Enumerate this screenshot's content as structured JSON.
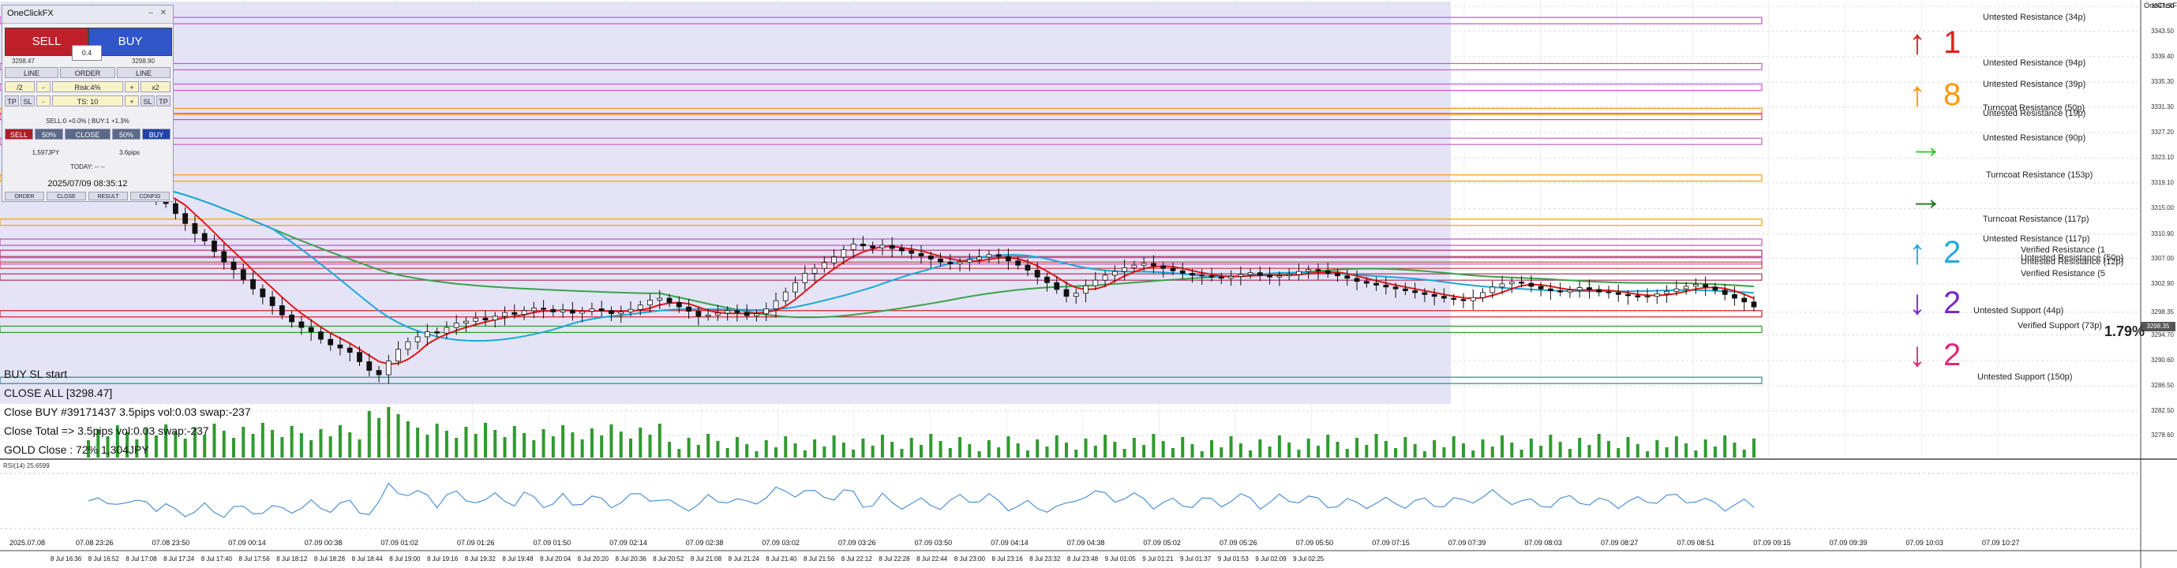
{
  "chart_data": {
    "type": "candlestick",
    "symbol_label": "OneClickFX",
    "price_axis": {
      "min": 3275,
      "max": 3348,
      "labels": [
        "3347.50",
        "3343.50",
        "3339.40",
        "3335.30",
        "3331.30",
        "3327.20",
        "3323.10",
        "3319.10",
        "3315.00",
        "3310.90",
        "3307.00",
        "3302.90",
        "3298.35",
        "3294.70",
        "3290.60",
        "3286.50",
        "3282.50",
        "3278.60"
      ]
    },
    "time_axis": {
      "labels": [
        "07.08 23:26",
        "07.08 23:50",
        "07.09 00:14",
        "07.09 00:38",
        "07.09 01:02",
        "07.09 01:26",
        "07.09 01:50",
        "07.09 02:14",
        "07.09 02:38",
        "07.09 03:02",
        "07.09 03:26",
        "07.09 03:50",
        "07.09 04:14",
        "07.09 04:38",
        "07.09 05:02",
        "07.09 05:26",
        "07.09 05:50",
        "07.09 07:15",
        "07.09 07:39",
        "07.09 08:03",
        "07.09 08:27",
        "07.09 08:51",
        "07.09 09:15",
        "07.09 09:39",
        "07.09 10:03",
        "07.09 10:27"
      ],
      "left_label": "2025.07.08",
      "bottom_labels": [
        "8 Jul 16:36",
        "8 Jul 16:52",
        "8 Jul 17:08",
        "8 Jul 17:24",
        "8 Jul 17:40",
        "8 Jul 17:56",
        "8 Jul 18:12",
        "8 Jul 18:28",
        "8 Jul 18:44",
        "8 Jul 19:00",
        "8 Jul 19:16",
        "8 Jul 19:32",
        "8 Jul 19:48",
        "8 Jul 20:04",
        "8 Jul 20:20",
        "8 Jul 20:36",
        "8 Jul 20:52",
        "8 Jul 21:08",
        "8 Jul 21:24",
        "8 Jul 21:40",
        "8 Jul 21:56",
        "8 Jul 22:12",
        "8 Jul 22:28",
        "8 Jul 22:44",
        "8 Jul 23:00",
        "8 Jul 23:16",
        "8 Jul 23:32",
        "8 Jul 23:48",
        "9 Jul 01:05",
        "9 Jul 01:21",
        "9 Jul 01:37",
        "9 Jul 01:53",
        "9 Jul 02:09",
        "9 Jul 02:25"
      ]
    },
    "close_series": [
      3319.2,
      3318.8,
      3318.6,
      3318.9,
      3318.2,
      3317.6,
      3318.1,
      3317.0,
      3315.8,
      3314.2,
      3312.6,
      3311.0,
      3309.8,
      3308.1,
      3306.4,
      3305.2,
      3303.6,
      3302.1,
      3300.8,
      3299.4,
      3297.9,
      3296.8,
      3295.9,
      3295.2,
      3294.0,
      3293.1,
      3292.6,
      3291.9,
      3290.4,
      3289.0,
      3288.3,
      3290.5,
      3292.4,
      3293.6,
      3294.4,
      3295.2,
      3295.0,
      3295.9,
      3296.6,
      3296.9,
      3297.4,
      3297.1,
      3297.7,
      3298.3,
      3298.0,
      3298.6,
      3299.0,
      3298.8,
      3298.4,
      3298.7,
      3298.2,
      3298.5,
      3298.9,
      3298.6,
      3298.1,
      3298.4,
      3298.8,
      3299.5,
      3300.3,
      3300.6,
      3299.9,
      3299.2,
      3298.5,
      3297.7,
      3297.9,
      3298.2,
      3298.6,
      3298.3,
      3297.8,
      3298.1,
      3298.9,
      3300.2,
      3301.6,
      3303.1,
      3304.6,
      3305.4,
      3306.3,
      3307.2,
      3308.4,
      3309.3,
      3309.0,
      3308.7,
      3309.1,
      3308.6,
      3308.2,
      3307.8,
      3307.4,
      3306.9,
      3306.4,
      3306.1,
      3306.4,
      3306.8,
      3307.2,
      3307.6,
      3307.3,
      3306.6,
      3305.9,
      3305.1,
      3304.0,
      3303.1,
      3302.0,
      3300.9,
      3301.4,
      3302.6,
      3303.5,
      3304.3,
      3304.9,
      3305.5,
      3305.9,
      3306.2,
      3305.8,
      3305.4,
      3305.0,
      3304.6,
      3304.3,
      3304.2,
      3304.0,
      3303.8,
      3304.1,
      3304.4,
      3304.7,
      3304.3,
      3304.0,
      3304.2,
      3304.4,
      3304.9,
      3305.2,
      3305.0,
      3304.6,
      3304.2,
      3303.8,
      3303.3,
      3303.0,
      3302.7,
      3302.4,
      3302.1,
      3301.8,
      3301.5,
      3301.2,
      3300.9,
      3300.6,
      3300.4,
      3300.2,
      3300.7,
      3301.5,
      3302.4,
      3302.9,
      3303.2,
      3303.0,
      3302.5,
      3302.1,
      3301.8,
      3301.6,
      3301.9,
      3302.3,
      3302.0,
      3301.6,
      3301.5,
      3301.2,
      3301.0,
      3300.8,
      3300.9,
      3301.3,
      3301.7,
      3302.1,
      3302.5,
      3302.8,
      3302.4,
      3301.9,
      3301.2,
      3300.6,
      3300.0,
      3299.2
    ],
    "indicators": {
      "ma_fast": "red",
      "ma_mid": "deepskyblue",
      "ma_slow": "green",
      "rsi_label": "RSI(14) 25.6599"
    },
    "levels": [
      {
        "label": "Untested Resistance (34p)",
        "price": 3345.2,
        "color": "#e040e0"
      },
      {
        "label": "Untested Resistance (94p)",
        "price": 3337.8,
        "color": "#c060c0"
      },
      {
        "label": "Untested Resistance (39p)",
        "price": 3334.5,
        "color": "#d050d0"
      },
      {
        "label": "Turncoat Resistance (50p)",
        "price": 3330.6,
        "color": "#ff9900"
      },
      {
        "label": "Untested Resistance (19p)",
        "price": 3329.8,
        "color": "#e040a0"
      },
      {
        "label": "Untested Resistance (90p)",
        "price": 3325.8,
        "color": "#c060c0"
      },
      {
        "label": "Turncoat Resistance (153p)",
        "price": 3319.9,
        "color": "#ff9900"
      },
      {
        "label": "Turncoat Resistance (117p)",
        "price": 3312.8,
        "color": "#ff9900"
      },
      {
        "label": "Untested Resistance (117p)",
        "price": 3309.6,
        "color": "#c050c0"
      },
      {
        "label": "Verified Resistance (1",
        "price": 3307.8,
        "color": "#b03060"
      },
      {
        "label": "Untested Resistance (50p)",
        "price": 3306.6,
        "color": "#c050c0"
      },
      {
        "label": "Untested Resistance (12p)",
        "price": 3305.9,
        "color": "#d04040"
      },
      {
        "label": "Verified Resistance (5",
        "price": 3304.0,
        "color": "#b03060"
      },
      {
        "label": "Untested Support (44p)",
        "price": 3298.1,
        "color": "#d02020"
      },
      {
        "label": "Verified Support (73p)",
        "price": 3295.6,
        "color": "#2a9a2a"
      },
      {
        "label": "Untested Support (150p)",
        "price": 3287.4,
        "color": "#2a8a8a"
      }
    ],
    "strength_panel": [
      {
        "arrow": "↑",
        "count": "1",
        "color": "#e02020"
      },
      {
        "arrow": "↑",
        "count": "8",
        "color": "#ff9900"
      },
      {
        "arrow": "→",
        "count": "",
        "color": "#33cc33"
      },
      {
        "arrow": "→",
        "count": "",
        "color": "#1a7a1a"
      },
      {
        "arrow": "↑",
        "count": "2",
        "color": "#22aadd"
      },
      {
        "arrow": "↓",
        "count": "2",
        "color": "#7a2ac0"
      },
      {
        "arrow": "↓",
        "count": "2",
        "color": "#e0287a"
      }
    ],
    "current_price_label": "3298.35",
    "percent_label": "1.79%"
  },
  "panel": {
    "title": "OneClickFX",
    "sell_label": "SELL",
    "buy_label": "BUY",
    "lot": "0.4",
    "sell_price": "3298.47",
    "buy_price": "3298.90",
    "row1": [
      "LINE",
      "ORDER",
      "LINE"
    ],
    "row2": [
      "/2",
      "-",
      "Risk:4%",
      "+",
      "x2"
    ],
    "row3": [
      "TP",
      "SL",
      "-",
      "TS: 10",
      "+",
      "SL",
      "TP"
    ],
    "info1": "SELL:0 +0.0% | BUY:1 +1.3%",
    "row4": [
      "SELL",
      "50%",
      "CLOSE",
      "50%",
      "BUY"
    ],
    "pl_left": "1,597JPY",
    "pl_right": "3.6pips",
    "today": "TODAY: -- --",
    "datetime": "2025/07/09  08:35:12",
    "tabs": [
      "ORDER",
      "CLOSE",
      "RESULT",
      "CONFIG"
    ]
  },
  "overlay": {
    "line1": "BUY SL start",
    "line2": "CLOSE ALL [3298.47]",
    "line3": "Close BUY #39171437 3.5pips vol:0.03 swap:-237",
    "line4": "Close Total => 3.5pips vol:0.03 swap:-237",
    "line5": "GOLD Close : 72% 1,304JPY"
  }
}
